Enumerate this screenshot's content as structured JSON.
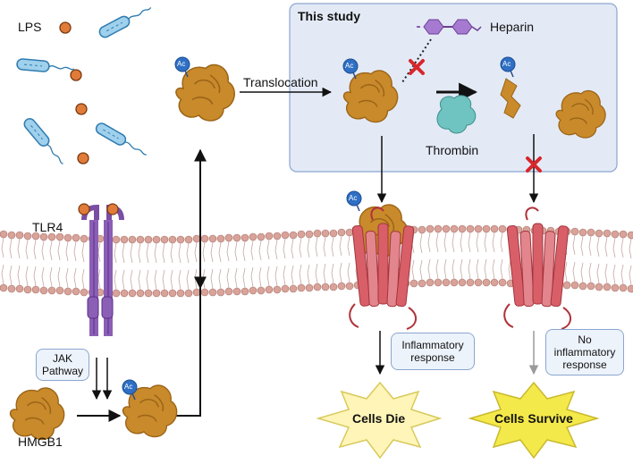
{
  "labels": {
    "lps": "LPS",
    "this_study": "This study",
    "heparin": "Heparin",
    "translocation": "Translocation",
    "thrombin": "Thrombin",
    "tlr4": "TLR4",
    "jak_line1": "JAK",
    "jak_line2": "Pathway",
    "hmgb1": "HMGB1",
    "inflammatory_line1": "Inflammatory",
    "inflammatory_line2": "response",
    "no_inflam_line1": "No",
    "no_inflam_line2": "inflammatory",
    "no_inflam_line3": "response",
    "cells_die": "Cells Die",
    "cells_survive": "Cells Survive",
    "acetyl_tag": "Ac"
  },
  "colors": {
    "protein": "#c98a2b",
    "protein_dark": "#9b6418",
    "acetyl": "#2f6fc4",
    "membrane_head": "#d9a39a",
    "receptor": "#7a4ea3",
    "inhibit": "#d8262b",
    "channel": "#d85f68",
    "thrombin": "#6fc3c0",
    "heparin": "#8b5fb5",
    "burst_die": "#fff5b8",
    "burst_survive": "#f4e94a"
  }
}
